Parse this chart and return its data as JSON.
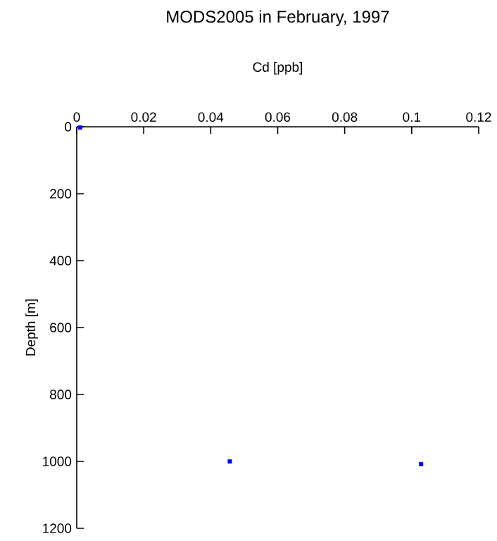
{
  "chart_data": {
    "type": "scatter",
    "title": "MODS2005 in February, 1997",
    "xlabel": "Cd [ppb]",
    "ylabel": "Depth [m]",
    "series": [
      {
        "color": "#0000ff",
        "x": [
          0.001,
          0.0457,
          0.1028
        ],
        "values": [
          2,
          1000,
          1008
        ]
      }
    ],
    "xlim": [
      0,
      0.12
    ],
    "xticks": [
      0,
      0.02,
      0.04,
      0.06,
      0.08,
      0.1,
      0.12
    ],
    "ylim": [
      1200,
      0
    ],
    "yticks": [
      0,
      200,
      400,
      600,
      800,
      1000,
      1200
    ],
    "marker": "square",
    "grid": false
  }
}
